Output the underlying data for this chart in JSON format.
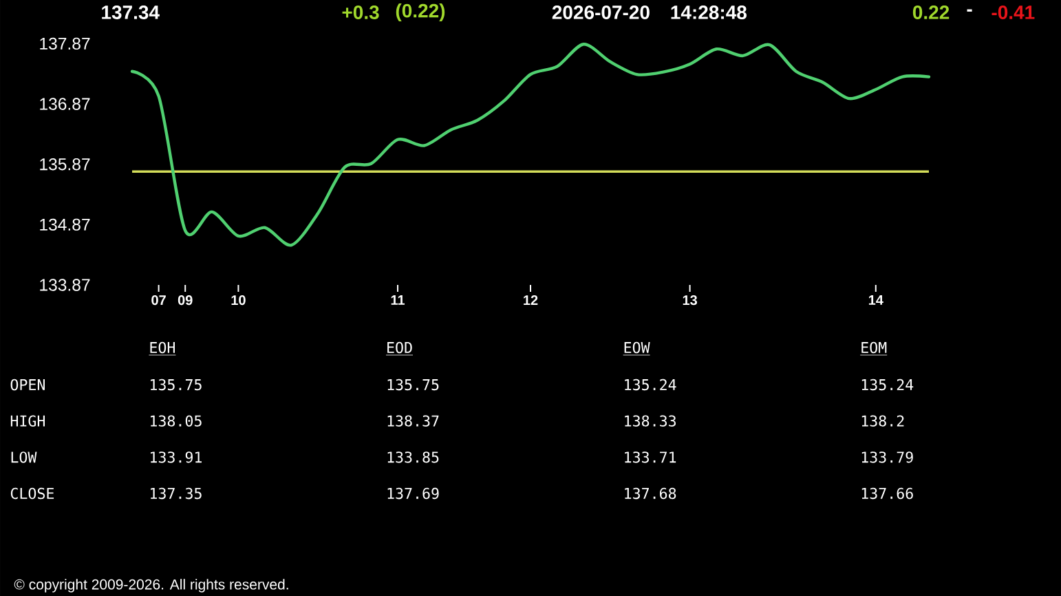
{
  "chart_data": [
    {
      "type": "line",
      "categories": [
        null,
        "07",
        "09",
        null,
        "10",
        null,
        null,
        null,
        null,
        null,
        "11",
        null,
        null,
        null,
        null,
        "12",
        null,
        null,
        null,
        null,
        null,
        "13",
        null,
        null,
        null,
        null,
        null,
        null,
        "14",
        null,
        null
      ],
      "values": [
        137.41,
        137.0,
        134.77,
        135.08,
        134.68,
        134.82,
        134.53,
        135.06,
        135.82,
        135.88,
        136.28,
        136.18,
        136.44,
        136.6,
        136.92,
        137.36,
        137.49,
        137.86,
        137.57,
        137.36,
        137.4,
        137.53,
        137.78,
        137.67,
        137.85,
        137.41,
        137.23,
        136.96,
        137.11,
        137.32,
        137.32
      ],
      "color": "#50d070",
      "ylim": [
        133.87,
        137.87
      ],
      "yticks": [
        133.87,
        134.87,
        135.87,
        136.87,
        137.87
      ],
      "ref_lines": [
        {
          "axis": "y",
          "value": 135.75,
          "color": "#d4de5a"
        }
      ],
      "annotations": [
        "137.34",
        "+0.3",
        "(0.22)",
        "2026-07-20",
        "14:28:48",
        "0.22",
        "-",
        "-0.41",
        "© copyright 2009-2026. All rights reserved."
      ]
    },
    {
      "type": "other",
      "categories": [
        "EOH",
        "EOD",
        "EOW",
        "EOM"
      ],
      "series": [
        {
          "name": "OPEN",
          "values": [
            135.75,
            135.75,
            135.24,
            135.24
          ]
        },
        {
          "name": "HIGH",
          "values": [
            138.05,
            138.37,
            138.33,
            138.2
          ]
        },
        {
          "name": "LOW",
          "values": [
            133.91,
            133.85,
            133.71,
            133.79
          ]
        },
        {
          "name": "CLOSE",
          "values": [
            137.35,
            137.69,
            137.68,
            137.66
          ]
        }
      ],
      "data_labels": true
    }
  ]
}
